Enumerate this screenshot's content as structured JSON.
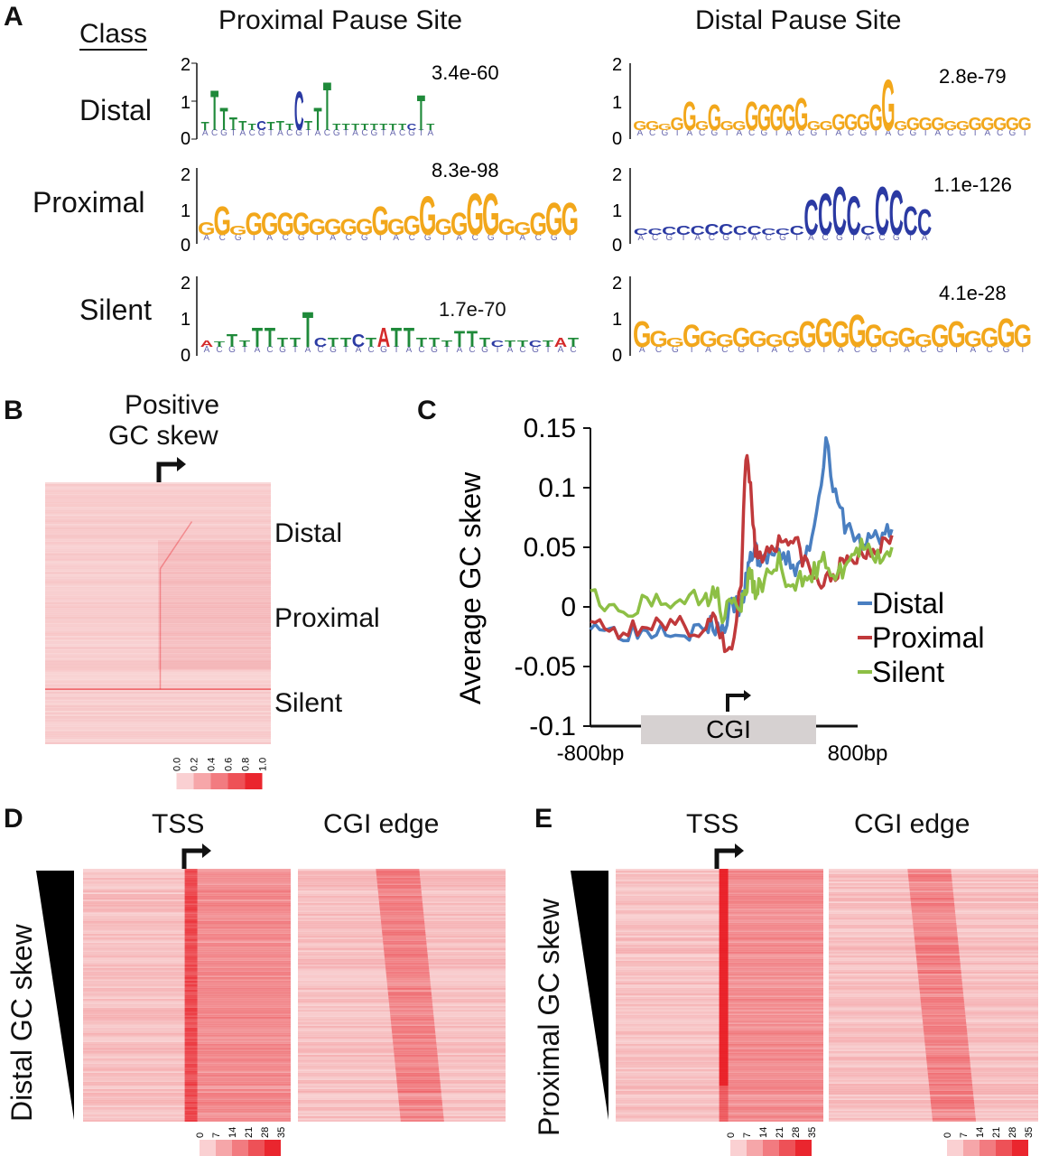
{
  "panel_labels": {
    "a": "A",
    "b": "B",
    "c": "C",
    "d": "D",
    "e": "E"
  },
  "panel_a": {
    "class_header": "Class",
    "col_titles": [
      "Proximal Pause Site",
      "Distal Pause Site"
    ],
    "row_labels": [
      "Distal",
      "Proximal",
      "Silent"
    ],
    "y_ticks": [
      "2",
      "1",
      "0"
    ],
    "pvalues": {
      "proximal_site": [
        "3.4e-60",
        "8.3e-98",
        "1.7e-70"
      ],
      "distal_site": [
        "2.8e-79",
        "1.1e-126",
        "4.1e-28"
      ]
    },
    "motifs": {
      "distal_row_proximal_site": [
        "T",
        "T",
        "T",
        "T",
        "T",
        "T",
        "C",
        "T",
        "T",
        "T",
        "C",
        "T",
        "T",
        "T",
        "T",
        "T"
      ],
      "distal_row_distal_site": [
        "G",
        "G",
        "G",
        "G",
        "G",
        "G",
        "G",
        "G",
        "G",
        "G",
        "G",
        "G",
        "G",
        "G",
        "G",
        "G"
      ],
      "proximal_row_proximal_site": [
        "G",
        "G",
        "G",
        "G",
        "G",
        "G",
        "G",
        "G",
        "G",
        "G",
        "G",
        "G",
        "G",
        "G",
        "G",
        "G",
        "G",
        "G"
      ],
      "proximal_row_distal_site": [
        "C",
        "C",
        "C",
        "C",
        "C",
        "C",
        "C",
        "C",
        "C",
        "C",
        "C",
        "C",
        "C"
      ],
      "silent_row_proximal_site": [
        "A",
        "T",
        "T",
        "T",
        "T",
        "T",
        "T",
        "T",
        "T",
        "C",
        "T",
        "T",
        "C",
        "T"
      ],
      "silent_row_distal_site": [
        "G",
        "G",
        "G",
        "G",
        "G",
        "G",
        "G",
        "G",
        "G",
        "G",
        "G",
        "G",
        "G",
        "G",
        "G",
        "G"
      ]
    }
  },
  "panel_b": {
    "title_line1": "Positive",
    "title_line2": "GC skew",
    "row_labels": [
      "Distal",
      "Proximal",
      "Silent"
    ],
    "scale_ticks": [
      "0.0",
      "0.2",
      "0.4",
      "0.6",
      "0.8",
      "1.0"
    ]
  },
  "panel_c": {
    "cgi_label": "CGI",
    "legend": [
      "Distal",
      "Proximal",
      "Silent"
    ]
  },
  "panel_d": {
    "col_titles": [
      "TSS",
      "CGI edge"
    ],
    "side_label": "Distal GC skew",
    "scale_ticks": [
      "0",
      "7",
      "14",
      "21",
      "28",
      "35"
    ]
  },
  "panel_e": {
    "col_titles": [
      "TSS",
      "CGI edge"
    ],
    "side_label": "Proximal GC skew",
    "scale_ticks": [
      "0",
      "7",
      "14",
      "21",
      "28",
      "35"
    ]
  },
  "colors": {
    "distal": "#4a7fc1",
    "proximal": "#c0393b",
    "silent": "#8dbf45",
    "heat": "#e8141c"
  },
  "chart_data": {
    "type": "line",
    "title": "",
    "xlabel": "",
    "ylabel": "Average GC skew",
    "x_tick_labels": [
      "-800bp",
      "800bp"
    ],
    "xlim": [
      -800,
      800
    ],
    "ylim": [
      -0.1,
      0.15
    ],
    "y_ticks": [
      "0.15",
      "0.1",
      "0.05",
      "0",
      "-0.05",
      "-0.1"
    ],
    "y_tick_values": [
      0.15,
      0.1,
      0.05,
      0,
      -0.05,
      -0.1
    ],
    "legend_position": "right",
    "x": [
      -800,
      -700,
      -600,
      -500,
      -400,
      -300,
      -200,
      -150,
      -100,
      -50,
      0,
      25,
      50,
      75,
      100,
      150,
      200,
      250,
      300,
      350,
      400,
      450,
      500,
      550,
      600,
      650,
      700,
      750,
      800
    ],
    "series": [
      {
        "name": "Distal",
        "color": "#4a7fc1",
        "values": [
          -0.01,
          -0.02,
          -0.02,
          -0.02,
          -0.015,
          -0.02,
          -0.02,
          -0.015,
          -0.02,
          0.0,
          0.0,
          0.02,
          0.04,
          0.05,
          0.035,
          0.045,
          0.04,
          0.04,
          0.03,
          0.045,
          0.08,
          0.14,
          0.09,
          0.07,
          0.06,
          0.05,
          0.06,
          0.06,
          0.065
        ]
      },
      {
        "name": "Proximal",
        "color": "#c0393b",
        "values": [
          -0.015,
          -0.02,
          -0.02,
          -0.01,
          -0.02,
          -0.015,
          -0.02,
          -0.01,
          -0.03,
          -0.04,
          0.02,
          0.125,
          0.1,
          0.05,
          0.04,
          0.05,
          0.055,
          0.06,
          0.05,
          0.035,
          0.02,
          0.02,
          0.03,
          0.035,
          0.04,
          0.045,
          0.05,
          0.055,
          0.06
        ]
      },
      {
        "name": "Silent",
        "color": "#8dbf45",
        "values": [
          0.02,
          0.0,
          -0.01,
          0.005,
          0.0,
          0.01,
          0.0,
          0.02,
          -0.005,
          0.01,
          0.0,
          0.015,
          0.03,
          0.01,
          0.02,
          0.025,
          0.04,
          0.01,
          0.02,
          0.03,
          0.03,
          0.04,
          0.02,
          0.035,
          0.045,
          0.05,
          0.04,
          0.045,
          0.05
        ]
      }
    ]
  }
}
